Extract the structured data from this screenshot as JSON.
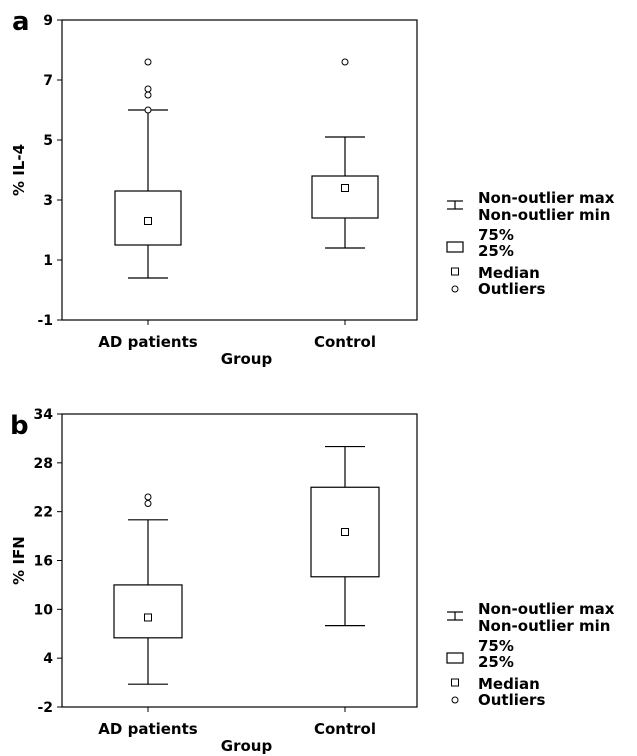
{
  "chart_data": [
    {
      "type": "boxplot",
      "panel_label": "a",
      "xlabel": "Group",
      "ylabel": "% IL-4",
      "ylim": [
        -1,
        9
      ],
      "yticks": [
        -1,
        1,
        3,
        5,
        7,
        9
      ],
      "categories": [
        "AD patients",
        "Control"
      ],
      "boxes": [
        {
          "category": "AD patients",
          "whisker_min": 0.4,
          "q1": 1.5,
          "median": 2.3,
          "q3": 3.3,
          "whisker_max": 6.0,
          "outliers": [
            6.0,
            6.5,
            6.7,
            7.6
          ]
        },
        {
          "category": "Control",
          "whisker_min": 1.4,
          "q1": 2.4,
          "median": 3.4,
          "q3": 3.8,
          "whisker_max": 5.1,
          "outliers": [
            7.6
          ]
        }
      ],
      "legend": {
        "whisker": [
          "Non-outlier max",
          "Non-outlier min"
        ],
        "box": [
          "75%",
          "25%"
        ],
        "median": "Median",
        "outliers": "Outliers"
      }
    },
    {
      "type": "boxplot",
      "panel_label": "b",
      "xlabel": "Group",
      "ylabel": "% IFN",
      "ylim": [
        -2,
        34
      ],
      "yticks": [
        -2,
        4,
        10,
        16,
        22,
        28,
        34
      ],
      "categories": [
        "AD patients",
        "Control"
      ],
      "boxes": [
        {
          "category": "AD patients",
          "whisker_min": 0.8,
          "q1": 6.5,
          "median": 9.0,
          "q3": 13.0,
          "whisker_max": 21.0,
          "outliers": [
            23.0,
            23.8
          ]
        },
        {
          "category": "Control",
          "whisker_min": 8.0,
          "q1": 14.0,
          "median": 19.5,
          "q3": 25.0,
          "whisker_max": 30.0,
          "outliers": []
        }
      ],
      "legend": {
        "whisker": [
          "Non-outlier max",
          "Non-outlier min"
        ],
        "box": [
          "75%",
          "25%"
        ],
        "median": "Median",
        "outliers": "Outliers"
      }
    }
  ]
}
